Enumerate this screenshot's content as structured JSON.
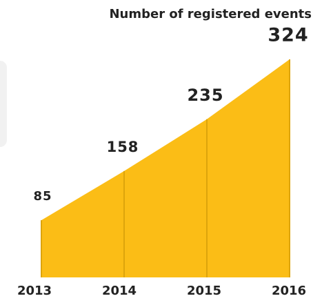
{
  "chart_data": {
    "type": "area",
    "title": "Number of registered events",
    "categories": [
      "2013",
      "2014",
      "2015",
      "2016"
    ],
    "values": [
      85,
      158,
      235,
      324
    ],
    "color": "#fbbd16",
    "line_color": "#dda40c"
  }
}
